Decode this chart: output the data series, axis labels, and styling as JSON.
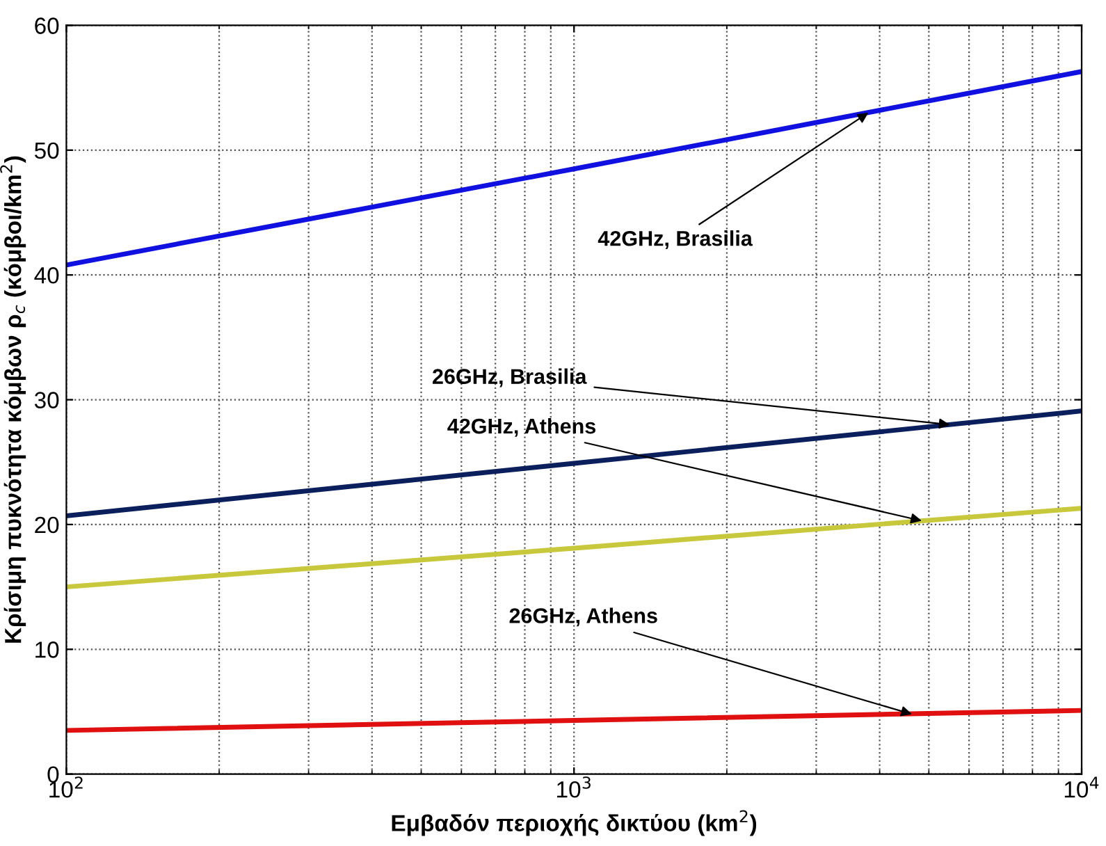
{
  "chart_data": {
    "type": "line",
    "xlabel": "Εμβαδόν περιοχής δικτύου (km$^{2}$)",
    "ylabel": "Κρίσιμη πυκνότητα κόμβων ρ$_{c}$ (κόμβοι/km$^{2}$)",
    "x": [
      100,
      1000,
      10000
    ],
    "series": [
      {
        "color": "#1010e0",
        "values": [
          40.8,
          48.5,
          56.3
        ]
      },
      {
        "color": "#0a1f5c",
        "values": [
          20.7,
          24.9,
          29.1
        ]
      },
      {
        "color": "#c8c83c",
        "values": [
          15.0,
          18.1,
          21.3
        ]
      },
      {
        "color": "#e01010",
        "values": [
          3.5,
          4.3,
          5.1
        ]
      }
    ],
    "log": "x",
    "xlim": [
      100,
      10000
    ],
    "xticks": [
      {
        "value": 100,
        "label": "10$^{2}$"
      },
      {
        "value": 1000,
        "label": "10$^{3}$"
      },
      {
        "value": 10000,
        "label": "10$^{4}$"
      }
    ],
    "ylim": [
      0,
      60
    ],
    "yticks": [
      0,
      10,
      20,
      30,
      40,
      50,
      60
    ],
    "grid": true,
    "marker": "none",
    "line_style": "solid",
    "annotations": [
      {
        "text": "42GHz, Brasilia",
        "x": 3800,
        "y": 53.0
      },
      {
        "text": "26GHz, Brasilia",
        "x": 5500,
        "y": 28.0
      },
      {
        "text": "42GHz, Athens",
        "x": 4840,
        "y": 20.3
      },
      {
        "text": "26GHz, Athens",
        "x": 4630,
        "y": 4.8
      }
    ]
  }
}
